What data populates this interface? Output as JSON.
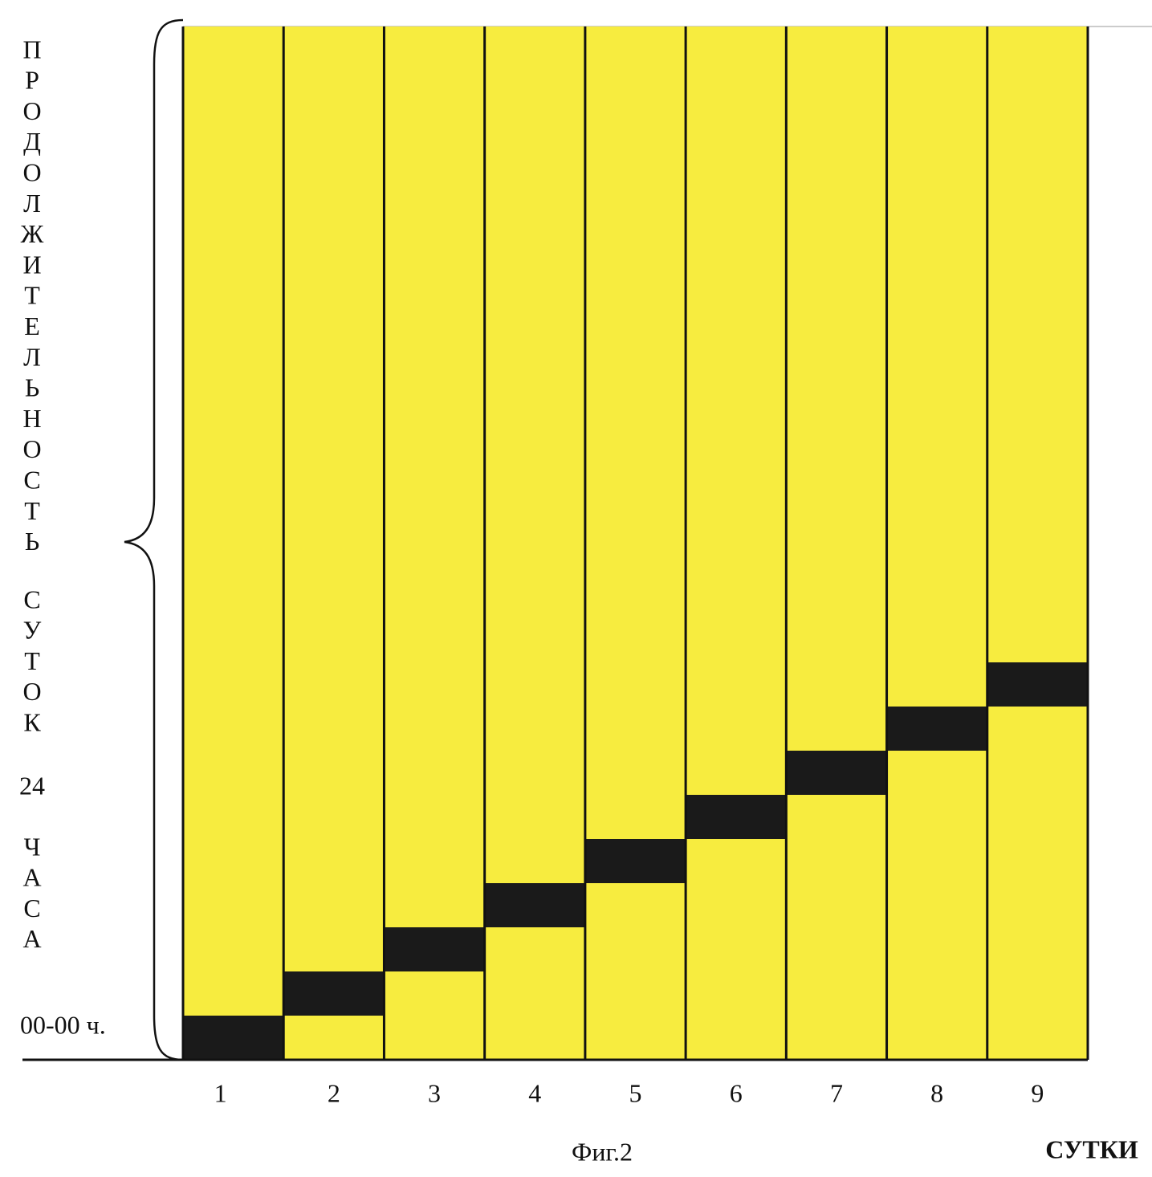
{
  "y_axis": {
    "lines": [
      "ПРОДОЛЖИТЕЛЬНОСТЬ",
      "СУТОК",
      "24",
      "ЧАСА"
    ],
    "origin_label": "00-00 ч."
  },
  "days": [
    "1",
    "2",
    "3",
    "4",
    "5",
    "6",
    "7",
    "8",
    "9"
  ],
  "x_axis_label": "СУТКИ",
  "caption": "Фиг.2"
}
